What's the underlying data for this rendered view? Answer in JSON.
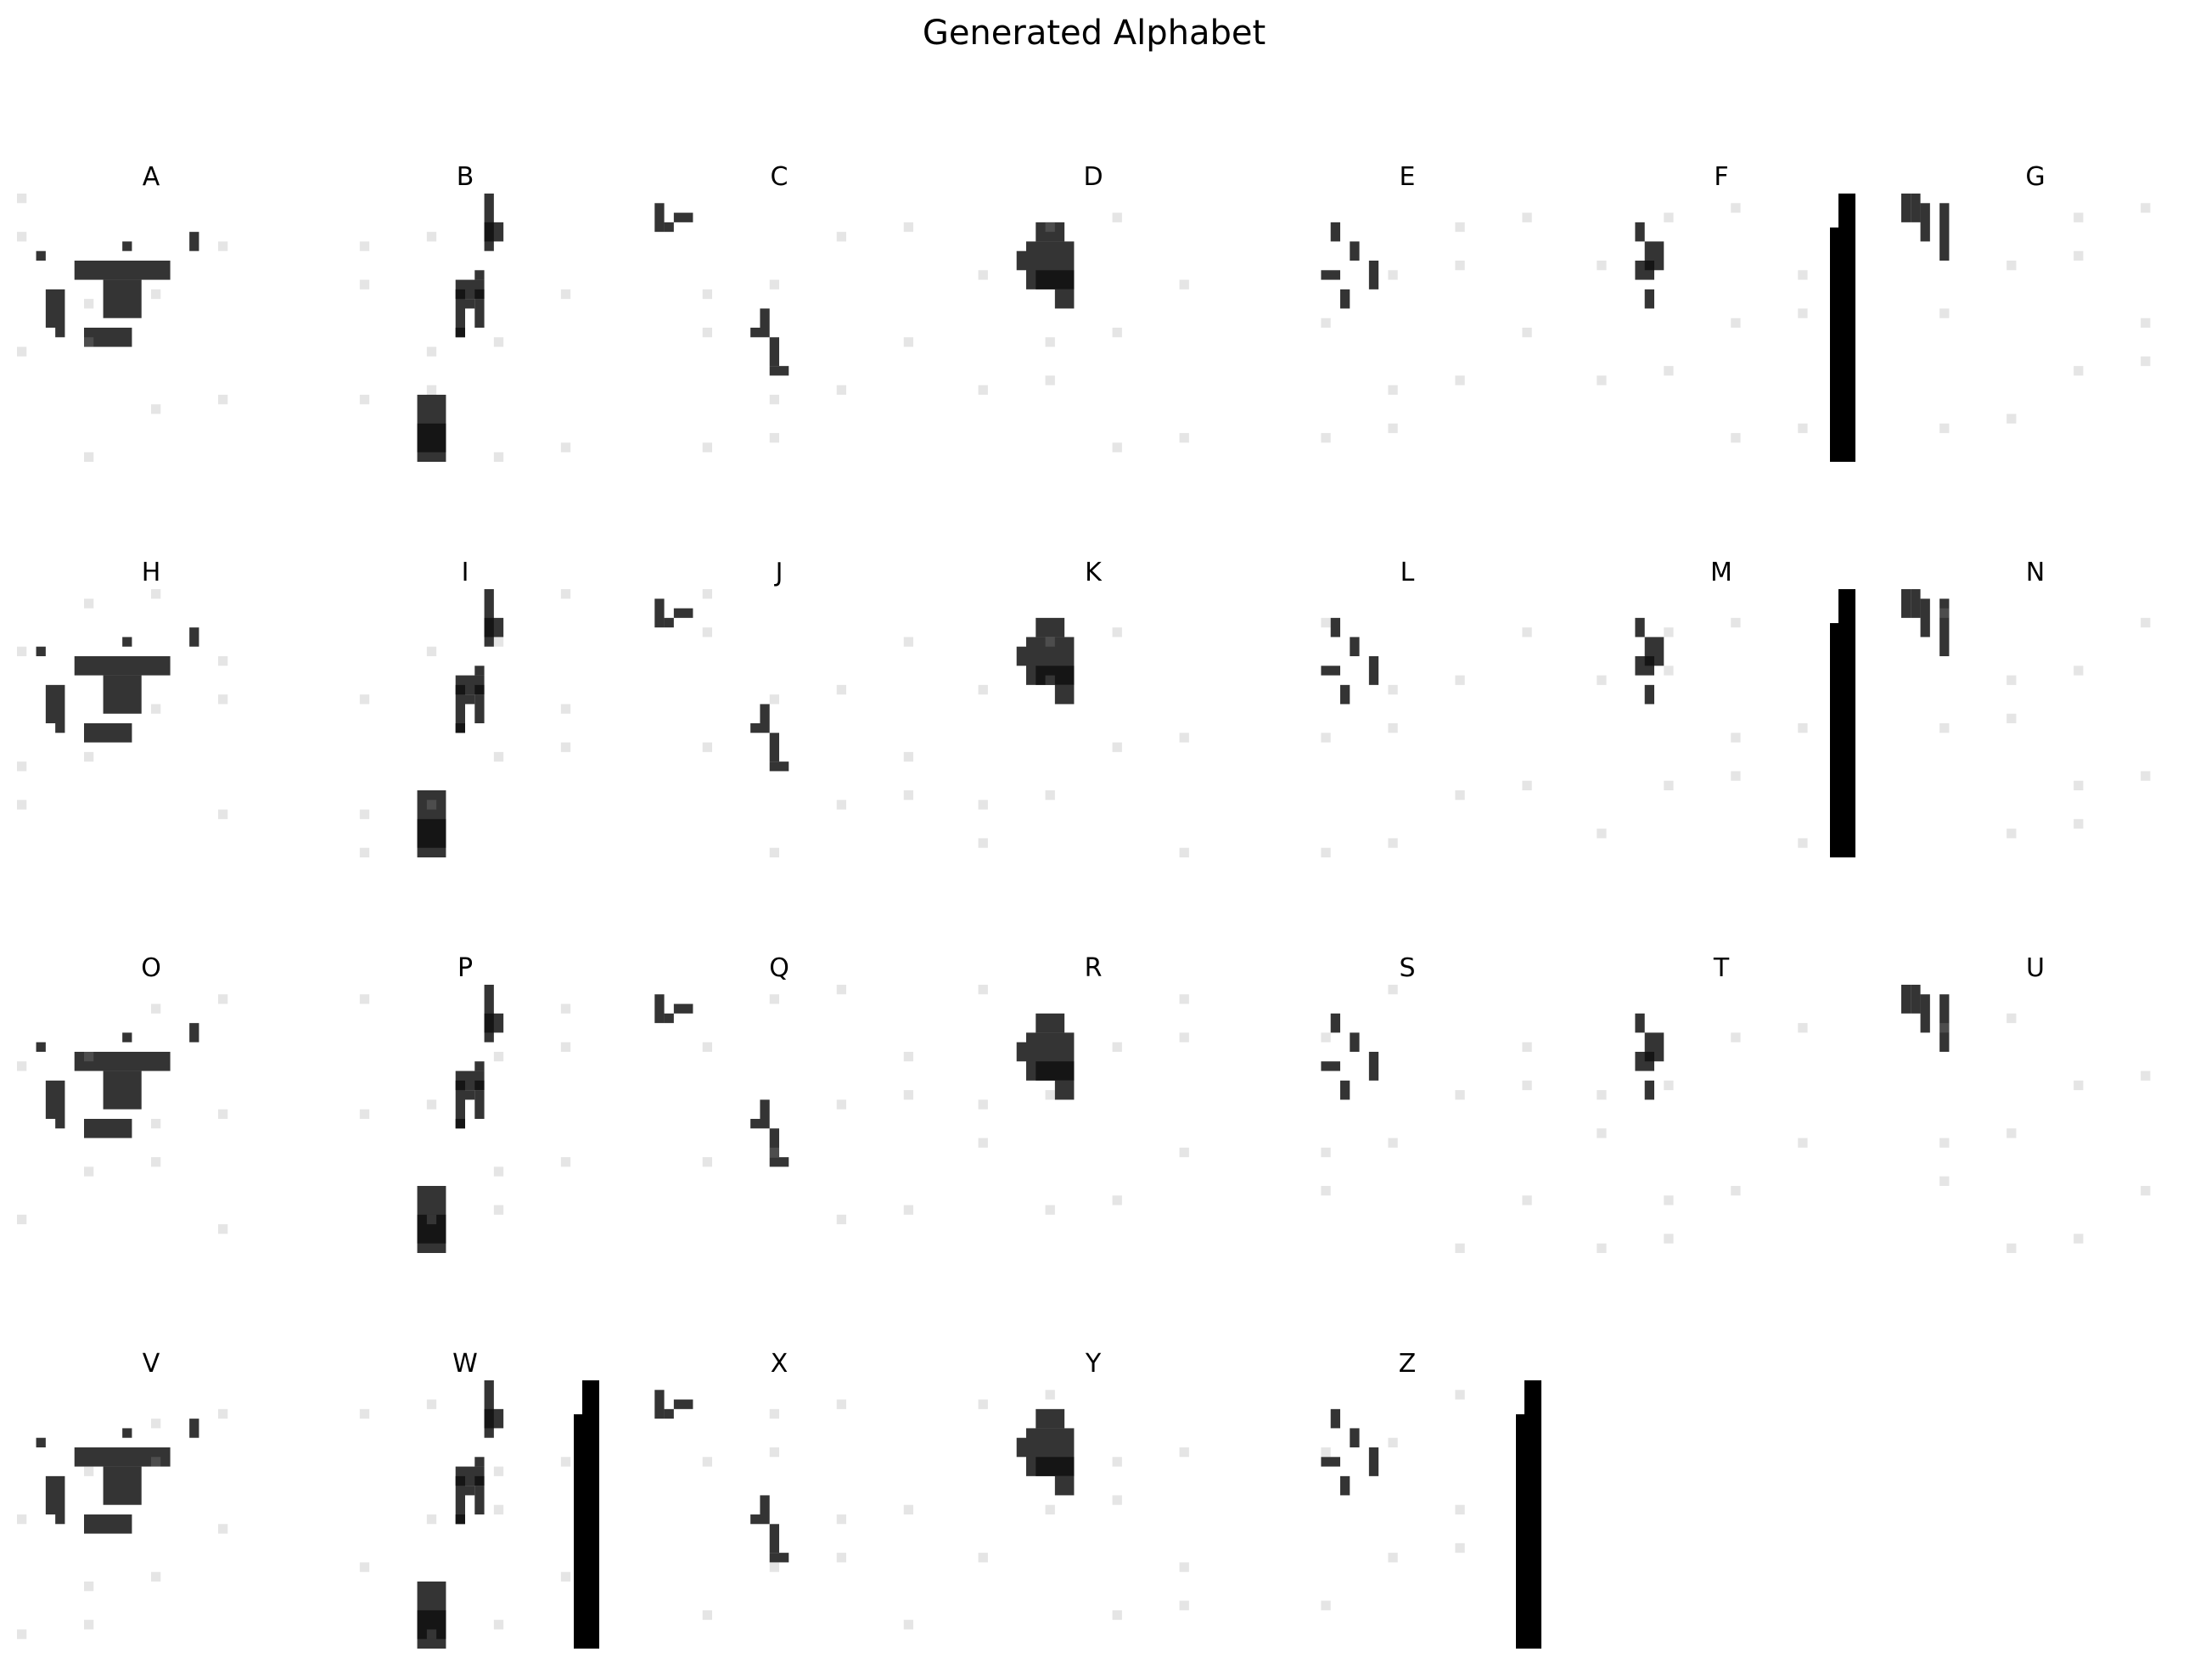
{
  "figure": {
    "title": "Generated Alphabet",
    "background_color": "#ffffff",
    "ink_color": "#000000",
    "image_style": "grayscale pixel image, 28x28, white background with dark strokes",
    "axes_visible": false,
    "grid": "4 rows by 7 columns, last row has 5 panels"
  },
  "panels": [
    {
      "letter": "A"
    },
    {
      "letter": "B"
    },
    {
      "letter": "C"
    },
    {
      "letter": "D"
    },
    {
      "letter": "E"
    },
    {
      "letter": "F"
    },
    {
      "letter": "G"
    },
    {
      "letter": "H"
    },
    {
      "letter": "I"
    },
    {
      "letter": "J"
    },
    {
      "letter": "K"
    },
    {
      "letter": "L"
    },
    {
      "letter": "M"
    },
    {
      "letter": "N"
    },
    {
      "letter": "O"
    },
    {
      "letter": "P"
    },
    {
      "letter": "Q"
    },
    {
      "letter": "R"
    },
    {
      "letter": "S"
    },
    {
      "letter": "T"
    },
    {
      "letter": "U"
    },
    {
      "letter": "V"
    },
    {
      "letter": "W"
    },
    {
      "letter": "X"
    },
    {
      "letter": "Y"
    },
    {
      "letter": "Z"
    }
  ]
}
